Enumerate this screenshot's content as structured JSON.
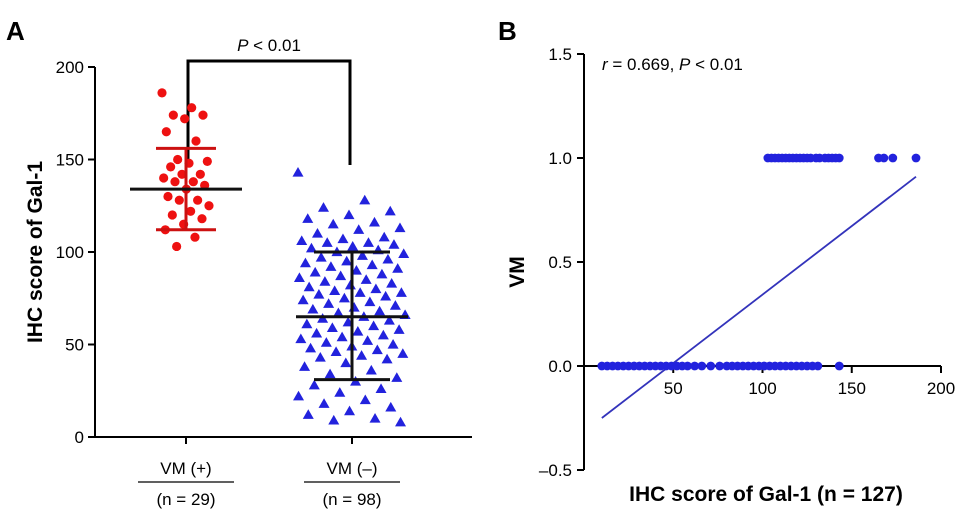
{
  "chart_data": [
    {
      "panel_label": "A",
      "type": "scatter",
      "ylabel": "IHC score of Gal-1",
      "ylim": [
        0,
        200
      ],
      "yticks": [
        0,
        50,
        100,
        150,
        200
      ],
      "significance": {
        "p_symbol": "P",
        "p_text": " < 0.01"
      },
      "groups": [
        {
          "label": "VM (+)",
          "n_label": "(n = 29)",
          "color": "#ee1111",
          "marker": "circle",
          "mean": 134,
          "sd_upper": 156,
          "sd_lower": 112,
          "values": [
            186,
            178,
            174,
            174,
            172,
            165,
            160,
            150,
            149,
            148,
            146,
            142,
            142,
            140,
            138,
            138,
            136,
            134,
            130,
            128,
            128,
            125,
            122,
            120,
            118,
            115,
            112,
            108,
            103
          ]
        },
        {
          "label": "VM (–)",
          "n_label": "(n = 98)",
          "color": "#2222dd",
          "marker": "triangle",
          "mean": 65,
          "sd_upper": 100,
          "sd_lower": 31,
          "values": [
            143,
            128,
            124,
            122,
            120,
            118,
            116,
            115,
            113,
            112,
            110,
            108,
            107,
            106,
            105,
            105,
            104,
            103,
            102,
            101,
            100,
            99,
            98,
            97,
            96,
            95,
            94,
            93,
            92,
            91,
            90,
            89,
            88,
            87,
            86,
            85,
            84,
            83,
            82,
            81,
            80,
            79,
            78,
            78,
            77,
            76,
            75,
            74,
            73,
            72,
            71,
            70,
            69,
            68,
            67,
            66,
            65,
            64,
            63,
            62,
            61,
            60,
            59,
            58,
            57,
            56,
            55,
            54,
            53,
            52,
            51,
            50,
            49,
            48,
            47,
            46,
            45,
            44,
            43,
            42,
            40,
            38,
            36,
            34,
            32,
            30,
            28,
            26,
            24,
            22,
            20,
            18,
            16,
            14,
            12,
            10,
            9,
            8
          ]
        }
      ]
    },
    {
      "panel_label": "B",
      "type": "scatter",
      "annotation": {
        "r_symbol": "r",
        "r_text": " = 0.669, ",
        "p_symbol": "P",
        "p_text": " < 0.01"
      },
      "xlabel": "IHC score of Gal-1 (n = 127)",
      "ylabel": "VM",
      "xlim": [
        0,
        200
      ],
      "ylim": [
        -0.5,
        1.5
      ],
      "xticks": [
        50,
        100,
        150,
        200
      ],
      "yticks": [
        -0.5,
        0.0,
        0.5,
        1.0,
        1.5
      ],
      "ytick_labels": [
        "–0.5",
        "0.0",
        "0.5",
        "1.0",
        "1.5"
      ],
      "series": [
        {
          "color": "#2222dd",
          "points": [
            [
              103,
              1
            ],
            [
              105,
              1
            ],
            [
              107,
              1
            ],
            [
              109,
              1
            ],
            [
              111,
              1
            ],
            [
              113,
              1
            ],
            [
              115,
              1
            ],
            [
              117,
              1
            ],
            [
              119,
              1
            ],
            [
              121,
              1
            ],
            [
              123,
              1
            ],
            [
              125,
              1
            ],
            [
              127,
              1
            ],
            [
              130,
              1
            ],
            [
              132,
              1
            ],
            [
              135,
              1
            ],
            [
              137,
              1
            ],
            [
              139,
              1
            ],
            [
              141,
              1
            ],
            [
              143,
              1
            ],
            [
              165,
              1
            ],
            [
              168,
              1
            ],
            [
              173,
              1
            ],
            [
              186,
              1
            ],
            [
              10,
              0
            ],
            [
              13,
              0
            ],
            [
              16,
              0
            ],
            [
              19,
              0
            ],
            [
              22,
              0
            ],
            [
              25,
              0
            ],
            [
              28,
              0
            ],
            [
              31,
              0
            ],
            [
              34,
              0
            ],
            [
              37,
              0
            ],
            [
              40,
              0
            ],
            [
              43,
              0
            ],
            [
              46,
              0
            ],
            [
              49,
              0
            ],
            [
              52,
              0
            ],
            [
              55,
              0
            ],
            [
              58,
              0
            ],
            [
              62,
              0
            ],
            [
              66,
              0
            ],
            [
              71,
              0
            ],
            [
              76,
              0
            ],
            [
              80,
              0
            ],
            [
              83,
              0
            ],
            [
              86,
              0
            ],
            [
              89,
              0
            ],
            [
              92,
              0
            ],
            [
              95,
              0
            ],
            [
              98,
              0
            ],
            [
              101,
              0
            ],
            [
              104,
              0
            ],
            [
              107,
              0
            ],
            [
              110,
              0
            ],
            [
              113,
              0
            ],
            [
              116,
              0
            ],
            [
              119,
              0
            ],
            [
              122,
              0
            ],
            [
              125,
              0
            ],
            [
              128,
              0
            ],
            [
              131,
              0
            ],
            [
              143,
              0
            ]
          ]
        }
      ],
      "fit_line": {
        "color": "#3333bb",
        "x": [
          10,
          186
        ],
        "y": [
          -0.25,
          0.91
        ]
      }
    }
  ]
}
